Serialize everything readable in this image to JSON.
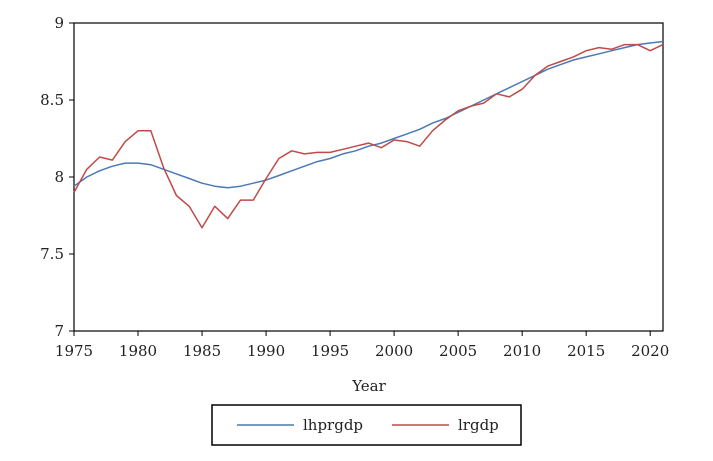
{
  "chart_data": {
    "type": "line",
    "title": "",
    "xlabel": "Year",
    "ylabel": "",
    "xlim": [
      1975,
      2021
    ],
    "ylim": [
      7,
      9
    ],
    "xticks": [
      "1975",
      "1980",
      "1985",
      "1990",
      "1995",
      "2000",
      "2005",
      "2010",
      "2015",
      "2020"
    ],
    "yticks": [
      "7",
      "7.5",
      "8",
      "8.5",
      "9"
    ],
    "grid": false,
    "legend_position": "bottom",
    "x": [
      1975,
      1976,
      1977,
      1978,
      1979,
      1980,
      1981,
      1982,
      1983,
      1984,
      1985,
      1986,
      1987,
      1988,
      1989,
      1990,
      1991,
      1992,
      1993,
      1994,
      1995,
      1996,
      1997,
      1998,
      1999,
      2000,
      2001,
      2002,
      2003,
      2004,
      2005,
      2006,
      2007,
      2008,
      2009,
      2010,
      2011,
      2012,
      2013,
      2014,
      2015,
      2016,
      2017,
      2018,
      2019,
      2020,
      2021
    ],
    "series": [
      {
        "name": "lhprgdp",
        "color": "#4a7ab5",
        "values": [
          7.94,
          8.0,
          8.04,
          8.07,
          8.09,
          8.09,
          8.08,
          8.05,
          8.02,
          7.99,
          7.96,
          7.94,
          7.93,
          7.94,
          7.96,
          7.98,
          8.01,
          8.04,
          8.07,
          8.1,
          8.12,
          8.15,
          8.17,
          8.2,
          8.22,
          8.25,
          8.28,
          8.31,
          8.35,
          8.38,
          8.42,
          8.46,
          8.5,
          8.54,
          8.58,
          8.62,
          8.66,
          8.7,
          8.73,
          8.76,
          8.78,
          8.8,
          8.82,
          8.84,
          8.86,
          8.87,
          8.88
        ]
      },
      {
        "name": "lrgdp",
        "color": "#be4b48",
        "values": [
          7.9,
          8.05,
          8.13,
          8.11,
          8.23,
          8.3,
          8.3,
          8.06,
          7.88,
          7.81,
          7.67,
          7.81,
          7.73,
          7.85,
          7.85,
          7.99,
          8.12,
          8.17,
          8.15,
          8.16,
          8.16,
          8.18,
          8.2,
          8.22,
          8.19,
          8.24,
          8.23,
          8.2,
          8.3,
          8.37,
          8.43,
          8.46,
          8.48,
          8.54,
          8.52,
          8.57,
          8.66,
          8.72,
          8.75,
          8.78,
          8.82,
          8.84,
          8.83,
          8.86,
          8.86,
          8.82,
          8.86
        ]
      }
    ]
  }
}
